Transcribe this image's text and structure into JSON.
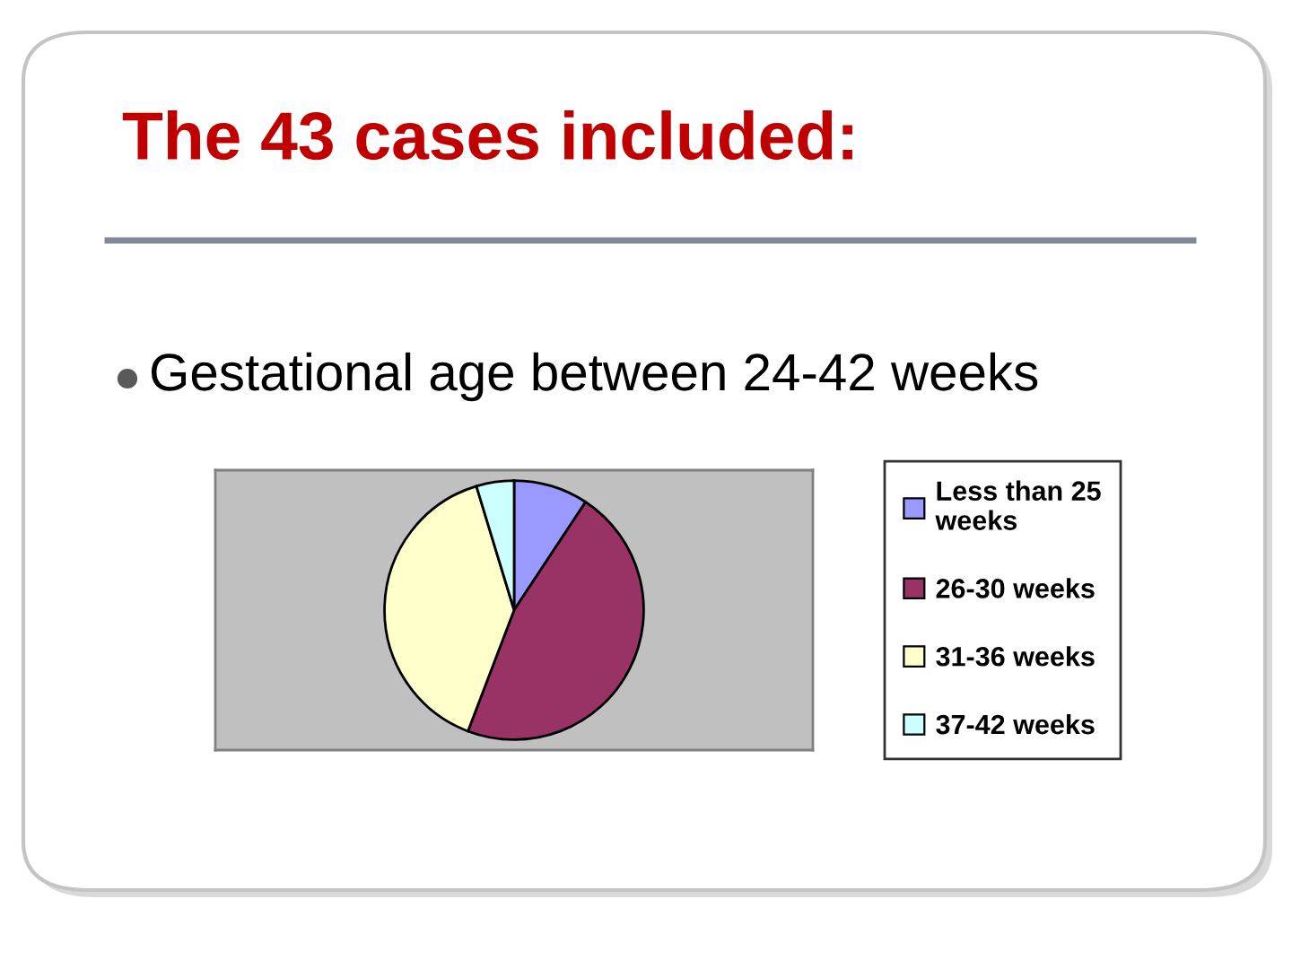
{
  "chart_data": {
    "type": "pie",
    "title": "The 43 cases included:",
    "subtitle": "Gestational age between 24-42 weeks",
    "categories": [
      "Less than 25\nweeks",
      "26-30 weeks",
      "31-36 weeks",
      "37-42 weeks"
    ],
    "values": [
      9.3,
      46.5,
      39.5,
      4.7
    ],
    "colors": [
      "#9999ff",
      "#993366",
      "#ffffcc",
      "#ccffff"
    ],
    "legend": "right"
  }
}
